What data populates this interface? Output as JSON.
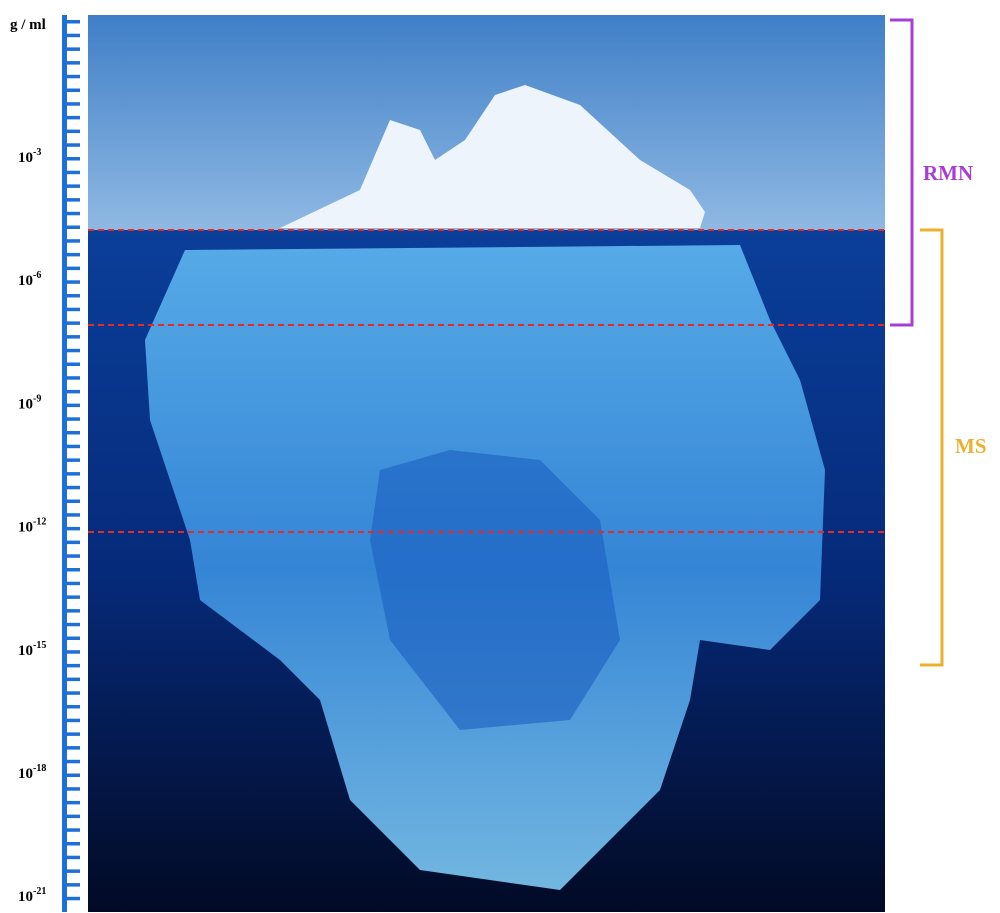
{
  "axis": {
    "unit": "g / ml",
    "ticks": [
      {
        "base": "10",
        "exponent": "-3"
      },
      {
        "base": "10",
        "exponent": "-6"
      },
      {
        "base": "10",
        "exponent": "-9"
      },
      {
        "base": "10",
        "exponent": "-12"
      },
      {
        "base": "10",
        "exponent": "-15"
      },
      {
        "base": "10",
        "exponent": "-18"
      },
      {
        "base": "10",
        "exponent": "-21"
      }
    ]
  },
  "brackets": [
    {
      "label": "RMN"
    },
    {
      "label": "MS"
    }
  ]
}
